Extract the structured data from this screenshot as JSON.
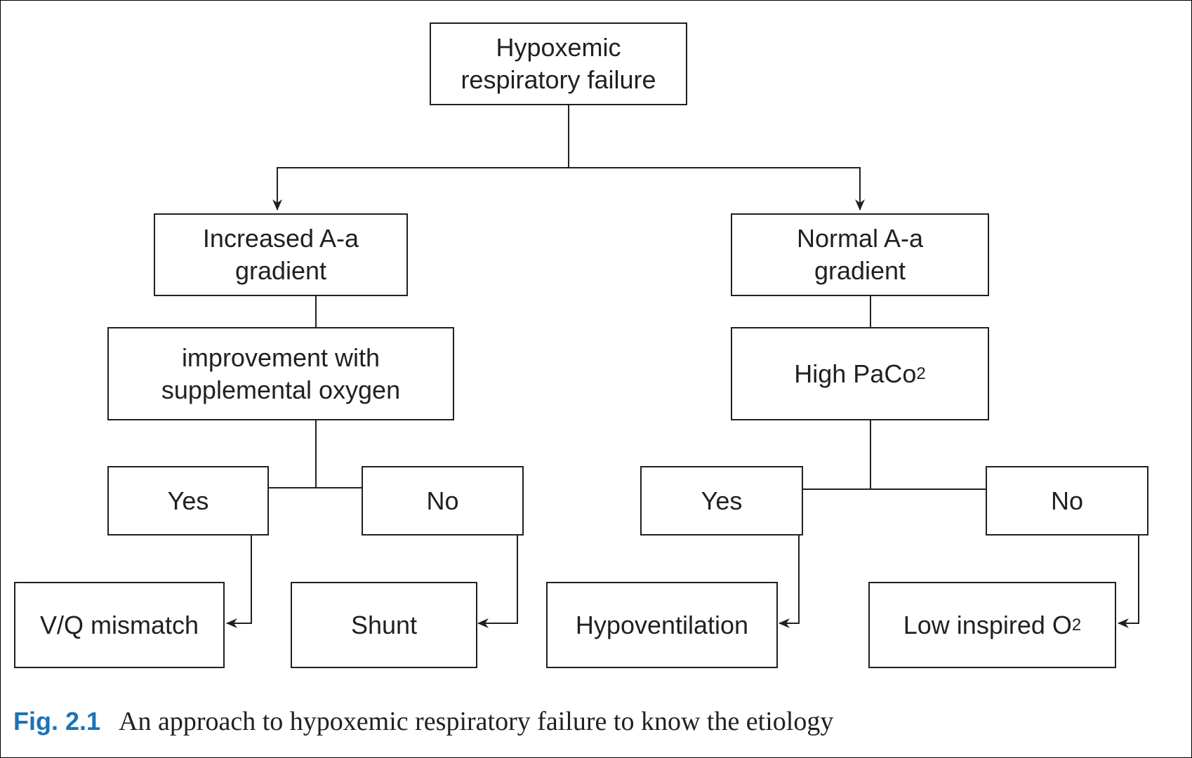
{
  "nodes": {
    "root": "Hypoxemic\nrespiratory failure",
    "increased": "Increased A-a\ngradient",
    "normal": "Normal A-a\ngradient",
    "improvement": "improvement with\nsupplemental oxygen",
    "high_paco2": {
      "text": "High PaCo",
      "sub": "2"
    },
    "yes_left": "Yes",
    "no_left": "No",
    "yes_right": "Yes",
    "no_right": "No",
    "vq_mismatch": "V/Q mismatch",
    "shunt": "Shunt",
    "hypoventilation": "Hypoventilation",
    "low_inspired": {
      "text": "Low inspired O",
      "sub": "2"
    }
  },
  "caption": {
    "label": "Fig. 2.1",
    "text": "An approach to hypoxemic respiratory failure to know the etiology"
  },
  "colors": {
    "caption_label": "#1a73b8",
    "ink": "#231f20"
  }
}
